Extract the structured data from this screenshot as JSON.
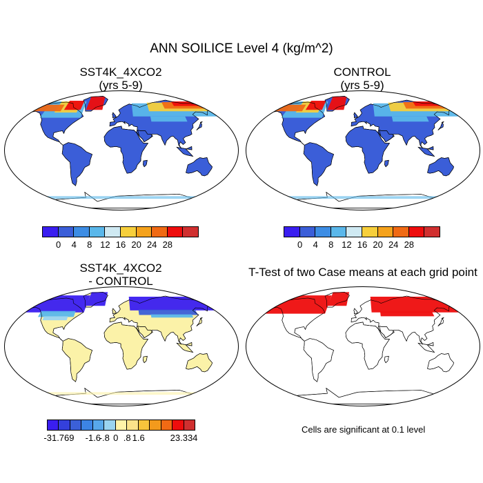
{
  "title": "ANN SOILICE Level 4 (kg/m^2)",
  "panels": {
    "tl": {
      "title_line1": "SST4K_4XCO2",
      "title_line2": "(yrs 5-9)"
    },
    "tr": {
      "title_line1": "CONTROL",
      "title_line2": "(yrs 5-9)"
    },
    "bl": {
      "title_line1": "SST4K_4XCO2",
      "title_line2": "- CONTROL"
    },
    "br": {
      "title_line1": "T-Test of two Case means at each grid point"
    }
  },
  "colorbar_main": {
    "labels": [
      "0",
      "4",
      "8",
      "12",
      "16",
      "20",
      "24",
      "28"
    ],
    "colors": [
      "#3a1ef0",
      "#3b5ed8",
      "#3d8de4",
      "#5ab7ea",
      "#cfe9f2",
      "#f7cf3c",
      "#f5a21c",
      "#f06a14",
      "#ee0d0d",
      "#d03030"
    ]
  },
  "colorbar_diff": {
    "labels": [
      "-31.769",
      "-1.6",
      "-.8",
      "0",
      ".8",
      "1.6",
      "23.334"
    ],
    "colors": [
      "#3a1ef0",
      "#3440dc",
      "#3b60d8",
      "#3c84e4",
      "#58a8ea",
      "#9ad4f0",
      "#fff3a8",
      "#fbe38a",
      "#f7c43c",
      "#f39a1c",
      "#f06a14",
      "#ee0d0d",
      "#d03030"
    ]
  },
  "footer_note": "Cells are significant at 0.1 level",
  "map_colors": {
    "ocean": "#ffffff",
    "land_main": "#3b5ed8",
    "land_diff": "#fbf2a8",
    "signif": "#ee0d0d",
    "cold_main": [
      "#5ab7ea",
      "#f7cf3c",
      "#f06a14",
      "#ee0d0d"
    ],
    "cold_diff": [
      "#3a1ef0",
      "#3b5ed8",
      "#5ab7ea",
      "#9ad4f0"
    ]
  }
}
